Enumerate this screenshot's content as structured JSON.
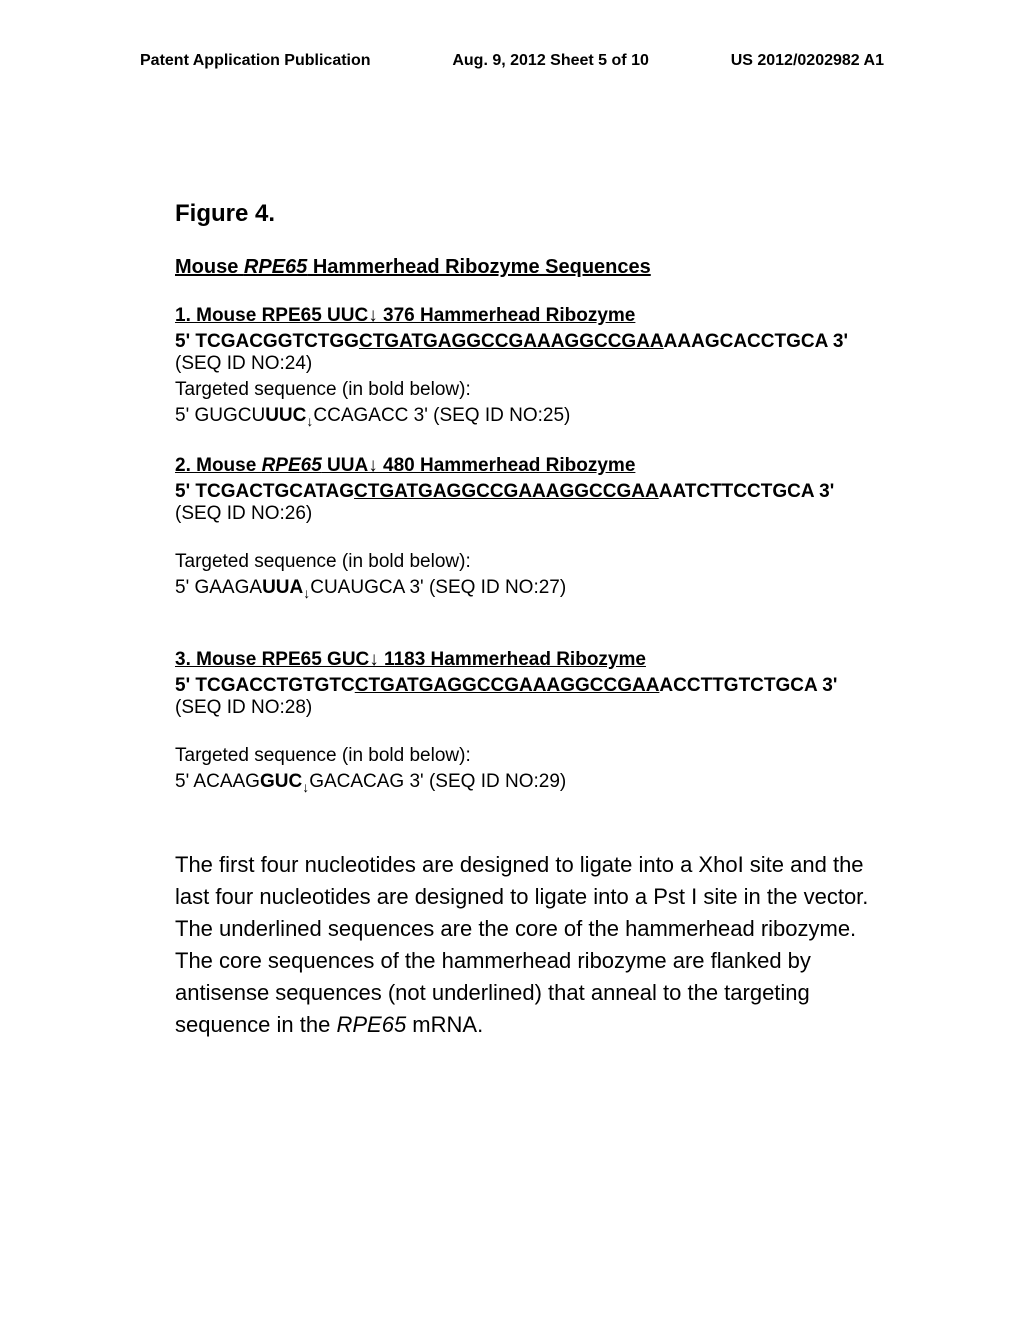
{
  "header": {
    "left": "Patent Application Publication",
    "mid": "Aug. 9, 2012   Sheet 5 of 10",
    "right": "US 2012/0202982 A1"
  },
  "figure_title": "Figure 4.",
  "section_title_pre": "Mouse ",
  "section_title_ital": "RPE65",
  "section_title_post": " Hammerhead Ribozyme Sequences",
  "r1": {
    "title": "1.  Mouse RPE65 UUC↓ 376 Hammerhead Ribozyme",
    "seq_pre": "5'  TCGACGGTCTGG",
    "seq_core": "CTGATGAGGCCGAAAGGCCGAA",
    "seq_post": "AAAGCACCTGCA  3'",
    "seq_id": " (SEQ ID NO:24)",
    "targ_label": "Targeted sequence (in bold below):",
    "targ_pre": "5' GUGCU",
    "targ_bold": "UUC",
    "targ_arrow": "↓",
    "targ_post": "CCAGACC 3' (SEQ ID NO:25)"
  },
  "r2": {
    "title_pre": "2.  Mouse ",
    "title_ital": "RPE65",
    "title_post": " UUA↓ 480 Hammerhead Ribozyme",
    "seq_pre": "5' TCGACTGCATAG",
    "seq_core": "CTGATGAGGCCGAAAGGCCGAA",
    "seq_post": "AATCTTCCTGCA 3'",
    "seq_id": " (SEQ ID NO:26)",
    "targ_label": "Targeted sequence (in bold below):",
    "targ_pre": "5' GAAGA",
    "targ_bold": "UUA",
    "targ_arrow": "↓",
    "targ_post": "CUAUGCA 3' (SEQ ID NO:27)"
  },
  "r3": {
    "title": "3.  Mouse RPE65 GUC↓ 1183 Hammerhead Ribozyme",
    "seq_pre": "5' TCGACCTGTGTC",
    "seq_core": "CTGATGAGGCCGAAAGGCCGAA",
    "seq_post": "ACCTTGTCTGCA 3'",
    "seq_id": " (SEQ ID NO:28)",
    "targ_label": "Targeted sequence (in bold below):",
    "targ_pre": "5' ACAAG",
    "targ_bold": "GUC",
    "targ_arrow": "↓",
    "targ_post": "GACACAG  3' (SEQ ID NO:29)"
  },
  "paragraph_a": "The first four nucleotides are designed to ligate into a XhoI site and the last four nucleotides are designed to ligate into a Pst I site in the vector.  The underlined sequences are the core of the hammerhead ribozyme.  The core sequences of the hammerhead ribozyme are flanked by antisense sequences (not underlined) that anneal to the targeting sequence in the ",
  "paragraph_ital": "RPE65",
  "paragraph_b": " mRNA."
}
